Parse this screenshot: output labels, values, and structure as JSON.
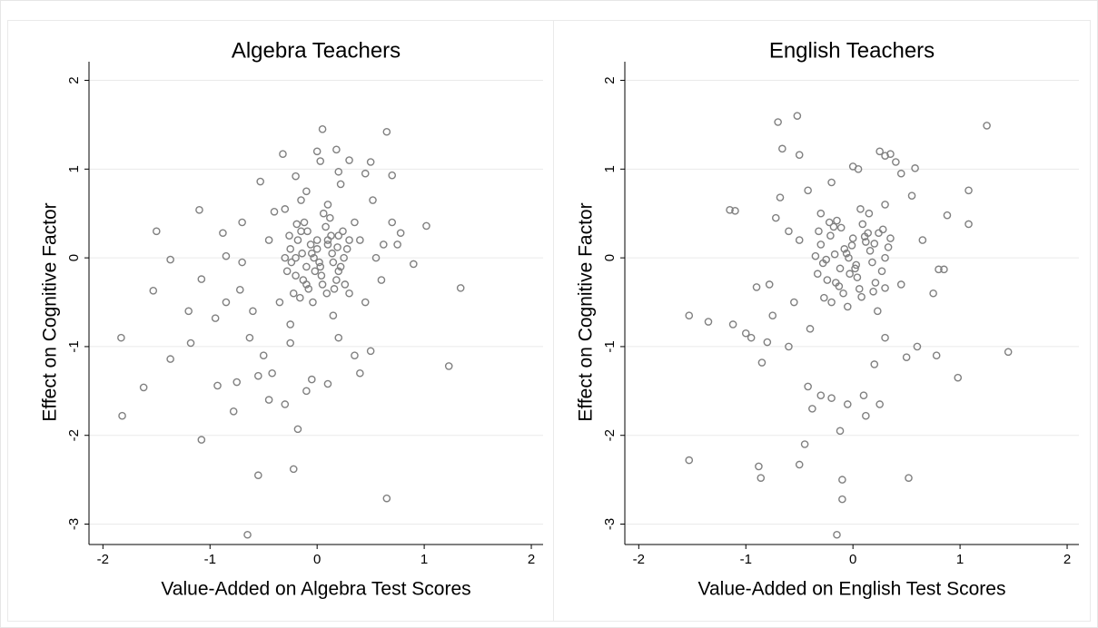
{
  "chart_data": [
    {
      "type": "scatter",
      "title": "Algebra Teachers",
      "xlabel": "Value-Added on Algebra Test Scores",
      "ylabel": "Effect on Cognitive Factor",
      "color": "#808080",
      "grid": true,
      "xlim": [
        -2.13,
        2.11
      ],
      "ylim": [
        -3.23,
        2.21
      ],
      "xticks": [
        -2,
        -1,
        0,
        1,
        2
      ],
      "yticks": [
        -3,
        -2,
        -1,
        0,
        1,
        2
      ],
      "x": [
        -1.83,
        -1.82,
        -1.62,
        -1.53,
        -1.5,
        -1.37,
        -1.37,
        -1.2,
        -1.18,
        -1.1,
        -1.08,
        -1.08,
        -0.93,
        -0.95,
        -0.88,
        -0.85,
        -0.85,
        -0.78,
        -0.75,
        -0.72,
        -0.7,
        -0.65,
        -0.63,
        -0.55,
        -0.55,
        -0.53,
        -0.5,
        -0.45,
        -0.42,
        -0.4,
        -0.32,
        -0.3,
        -0.25,
        -0.22,
        -0.2,
        -0.18,
        -0.1,
        -0.05,
        0.0,
        0.03,
        0.05,
        0.1,
        0.18,
        0.2,
        0.22,
        0.3,
        0.35,
        0.4,
        0.45,
        0.5,
        0.5,
        0.52,
        0.6,
        0.62,
        0.65,
        0.65,
        0.7,
        0.7,
        0.75,
        0.78,
        0.9,
        1.02,
        1.23,
        1.34,
        -0.3,
        -0.15,
        0.35,
        -0.6,
        -0.7,
        0.45,
        0.2,
        -0.25,
        0.15,
        -0.45,
        0.4,
        -0.1,
        0.1,
        -0.35,
        0.3,
        0.55,
        -0.25,
        -0.2,
        -0.15,
        -0.1,
        -0.05,
        0,
        0.05,
        0.1,
        0.15,
        0.2,
        0.25,
        -0.22,
        -0.12,
        -0.02,
        0.08,
        0.18,
        0.28,
        -0.3,
        -0.18,
        -0.08,
        0.02,
        0.12,
        0.22,
        -0.26,
        -0.16,
        -0.06,
        0.04,
        0.14,
        0.24,
        -0.2,
        -0.1,
        0,
        0.1,
        0.2,
        -0.14,
        -0.04,
        0.06,
        0.16,
        -0.28,
        0.3,
        -0.24,
        0.26,
        -0.09,
        0.09,
        -0.03,
        0.03,
        0.13,
        -0.13,
        0.19,
        -0.19
      ],
      "y": [
        -0.9,
        -1.78,
        -1.46,
        -0.37,
        0.3,
        -0.02,
        -1.14,
        -0.6,
        -0.96,
        0.54,
        -0.24,
        -2.05,
        -1.44,
        -0.68,
        0.28,
        -0.5,
        0.02,
        -1.73,
        -1.4,
        -0.36,
        0.4,
        -3.12,
        -0.9,
        -2.45,
        -1.33,
        0.86,
        -1.1,
        -1.6,
        -1.3,
        0.52,
        1.17,
        -1.65,
        -0.96,
        -2.38,
        0.92,
        -1.93,
        -1.5,
        -1.37,
        1.2,
        1.09,
        1.45,
        -1.42,
        1.22,
        0.97,
        0.83,
        1.1,
        -1.1,
        -1.3,
        0.95,
        1.08,
        -1.05,
        0.65,
        -0.25,
        0.15,
        1.42,
        -2.71,
        0.93,
        0.4,
        0.15,
        0.28,
        -0.07,
        0.36,
        -1.22,
        -0.34,
        0.55,
        0.65,
        0.4,
        -0.6,
        -0.05,
        -0.5,
        -0.9,
        -0.75,
        -0.65,
        0.2,
        0.2,
        0.75,
        0.6,
        -0.5,
        -0.4,
        0.0,
        0.1,
        -0.2,
        0.3,
        -0.1,
        0.05,
        0.2,
        -0.3,
        0.15,
        -0.05,
        0.25,
        0.0,
        -0.4,
        0.4,
        -0.15,
        0.35,
        -0.25,
        0.1,
        0.0,
        0.2,
        -0.35,
        -0.05,
        0.45,
        -0.1,
        0.25,
        -0.45,
        0.15,
        -0.2,
        0.05,
        0.3,
        0.0,
        -0.3,
        0.1,
        0.2,
        -0.15,
        0.05,
        -0.5,
        0.5,
        -0.35,
        -0.15,
        0.2,
        -0.05,
        -0.3,
        0.3,
        -0.4,
        0.0,
        -0.1,
        0.25,
        -0.25,
        0.12,
        0.38
      ]
    },
    {
      "type": "scatter",
      "title": "English Teachers",
      "xlabel": "Value-Added on English Test Scores",
      "ylabel": "Effect on Cognitive Factor",
      "color": "#808080",
      "grid": true,
      "xlim": [
        -2.13,
        2.11
      ],
      "ylim": [
        -3.23,
        2.21
      ],
      "xticks": [
        -2,
        -1,
        0,
        1,
        2
      ],
      "yticks": [
        -3,
        -2,
        -1,
        0,
        1,
        2
      ],
      "x": [
        -1.53,
        -1.53,
        -1.35,
        -1.15,
        -1.1,
        -1.12,
        -1.0,
        -0.95,
        -0.9,
        -0.88,
        -0.86,
        -0.85,
        -0.8,
        -0.78,
        -0.75,
        -0.72,
        -0.7,
        -0.68,
        -0.66,
        -0.6,
        -0.55,
        -0.52,
        -0.5,
        -0.5,
        -0.45,
        -0.42,
        -0.42,
        -0.38,
        -0.3,
        -0.2,
        -0.15,
        -0.12,
        -0.1,
        -0.1,
        -0.05,
        0.0,
        0.05,
        0.1,
        0.12,
        0.25,
        0.25,
        0.3,
        0.35,
        0.4,
        0.45,
        0.5,
        0.52,
        0.55,
        0.58,
        0.6,
        0.65,
        0.75,
        0.78,
        0.8,
        0.85,
        0.88,
        0.98,
        1.08,
        1.08,
        1.25,
        1.45,
        -0.3,
        0.3,
        -0.4,
        0.3,
        -0.6,
        0.45,
        -0.2,
        0.2,
        -0.5,
        -0.3,
        -0.24,
        -0.18,
        -0.12,
        -0.06,
        0,
        0.06,
        0.12,
        0.18,
        0.24,
        0.3,
        -0.27,
        -0.15,
        -0.03,
        0.09,
        0.21,
        0.33,
        -0.35,
        -0.21,
        -0.09,
        0.03,
        0.15,
        0.27,
        -0.32,
        -0.2,
        -0.08,
        0.04,
        0.16,
        0.28,
        -0.25,
        -0.13,
        -0.01,
        0.11,
        0.23,
        -0.17,
        -0.05,
        0.07,
        0.19,
        -0.33,
        0.35,
        -0.28,
        0.3,
        -0.11,
        0.08,
        -0.04,
        0.02,
        0.14,
        -0.16,
        0.2,
        -0.22
      ],
      "y": [
        -0.65,
        -2.28,
        -0.72,
        0.54,
        0.53,
        -0.75,
        -0.85,
        -0.9,
        -0.33,
        -2.35,
        -2.48,
        -1.18,
        -0.95,
        -0.3,
        -0.65,
        0.45,
        1.53,
        0.68,
        1.23,
        0.3,
        -0.5,
        1.6,
        1.16,
        -2.33,
        -2.1,
        0.76,
        -1.45,
        -1.7,
        -1.55,
        -1.58,
        -3.12,
        -1.95,
        -2.5,
        -2.72,
        -1.65,
        1.03,
        1.0,
        -1.55,
        -1.78,
        -1.65,
        1.2,
        1.15,
        1.17,
        1.08,
        0.95,
        -1.12,
        -2.48,
        0.7,
        1.01,
        -1.0,
        0.2,
        -0.4,
        -1.1,
        -0.13,
        -0.13,
        0.48,
        -1.35,
        0.38,
        0.76,
        1.49,
        -1.06,
        0.5,
        0.6,
        -0.8,
        -0.9,
        -1.0,
        -0.3,
        0.85,
        -1.2,
        0.2,
        0.15,
        -0.25,
        0.35,
        -0.12,
        0.05,
        0.22,
        -0.35,
        0.18,
        -0.05,
        0.28,
        0.0,
        -0.45,
        0.42,
        -0.18,
        0.38,
        -0.28,
        0.12,
        0.02,
        0.25,
        -0.4,
        -0.08,
        0.5,
        -0.15,
        0.3,
        -0.5,
        0.1,
        -0.22,
        0.08,
        0.32,
        -0.02,
        -0.32,
        0.14,
        0.24,
        -0.6,
        0.04,
        -0.55,
        0.55,
        -0.38,
        -0.18,
        0.22,
        -0.06,
        -0.34,
        0.34,
        -0.44,
        0.0,
        -0.12,
        0.28,
        -0.28,
        0.16,
        0.4
      ]
    }
  ]
}
